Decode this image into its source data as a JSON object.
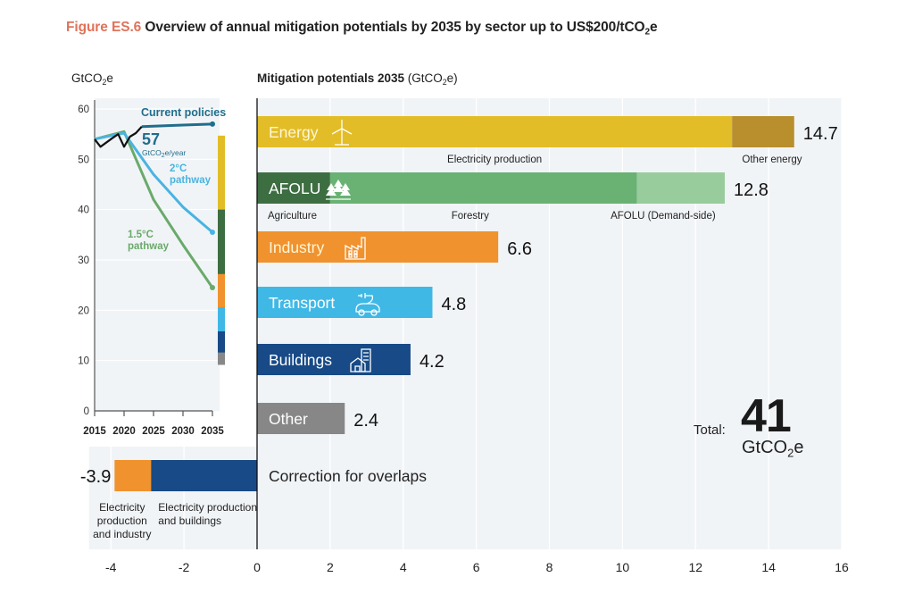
{
  "figure": {
    "number": "Figure ES.6",
    "title": "Overview of annual mitigation potentials by 2035 by sector up to US$200/tCO",
    "title_sub": "2",
    "title_tail": "e"
  },
  "chart_data": [
    {
      "type": "line",
      "id": "emissions-pathways",
      "ylabel": "GtCO2e",
      "ylabel_main": "GtCO",
      "ylabel_sub": "2",
      "ylabel_tail": "e",
      "ylim": [
        0,
        60
      ],
      "xlim": [
        2015,
        2035
      ],
      "y_ticks": [
        0,
        10,
        20,
        30,
        40,
        50,
        60
      ],
      "x_ticks": [
        2015,
        2020,
        2025,
        2030,
        2035
      ],
      "grid": true,
      "series": [
        {
          "name": "Historical",
          "color": "#111111",
          "points": [
            [
              2015,
              54.0
            ],
            [
              2016,
              52.5
            ],
            [
              2018,
              54.2
            ],
            [
              2019,
              55.0
            ],
            [
              2020,
              52.5
            ],
            [
              2021,
              54.5
            ],
            [
              2022,
              55.2
            ],
            [
              2023,
              56.5
            ]
          ]
        },
        {
          "name": "Current policies",
          "label": "Current policies",
          "color": "#1f6e8c",
          "points": [
            [
              2023,
              56.5
            ],
            [
              2025,
              56.6
            ],
            [
              2030,
              56.8
            ],
            [
              2035,
              57.0
            ]
          ]
        },
        {
          "name": "2°C pathway",
          "label_line1": "2°C",
          "label_line2": "pathway",
          "color": "#4ab4e0",
          "points": [
            [
              2015,
              54.0
            ],
            [
              2019,
              55.0
            ],
            [
              2020,
              55.2
            ],
            [
              2025,
              47.0
            ],
            [
              2030,
              40.5
            ],
            [
              2035,
              35.5
            ]
          ]
        },
        {
          "name": "1.5°C pathway",
          "label_line1": "1.5°C",
          "label_line2": "pathway",
          "color": "#6aaa6a",
          "points": [
            [
              2015,
              54.0
            ],
            [
              2020,
              55.5
            ],
            [
              2025,
              42.0
            ],
            [
              2030,
              33.0
            ],
            [
              2035,
              24.5
            ]
          ]
        }
      ],
      "annotation": {
        "value": "57",
        "unit_main": "GtCO",
        "unit_sub": "2",
        "unit_tail": "e/year"
      },
      "stacked_gap_bar": {
        "segments": [
          {
            "sector": "Energy",
            "value": 14.7,
            "color": "#e2bd28"
          },
          {
            "sector": "AFOLU",
            "value": 12.8,
            "color": "#3d6e42"
          },
          {
            "sector": "Industry",
            "value": 6.6,
            "color": "#f0922e"
          },
          {
            "sector": "Transport",
            "value": 4.8,
            "color": "#3fb8e6"
          },
          {
            "sector": "Buildings",
            "value": 4.2,
            "color": "#174a86"
          },
          {
            "sector": "Other",
            "value": 2.4,
            "color": "#888888"
          },
          {
            "sector": "Correction",
            "value": -3.9,
            "color": "none"
          }
        ],
        "top_value": 57
      }
    },
    {
      "type": "bar",
      "id": "mitigation-potentials",
      "title": "Mitigation potentials 2035",
      "title_unit_main": " (GtCO",
      "title_unit_sub": "2",
      "title_unit_tail": "e)",
      "orientation": "horizontal",
      "xlim": [
        -4,
        16
      ],
      "x_ticks": [
        -4,
        -2,
        0,
        2,
        4,
        6,
        8,
        10,
        12,
        14,
        16
      ],
      "grid": true,
      "bars": [
        {
          "name": "Energy",
          "icon": "wind-turbine-icon",
          "total": 14.7,
          "total_label": "14.7",
          "segments": [
            {
              "label": "Electricity production",
              "value": 13.0,
              "color": "#e2bd28"
            },
            {
              "label": "Other energy",
              "value": 1.7,
              "color": "#b98f2e"
            }
          ]
        },
        {
          "name": "AFOLU",
          "icon": "trees-icon",
          "total": 12.8,
          "total_label": "12.8",
          "segments": [
            {
              "label": "Agriculture",
              "value": 2.0,
              "color": "#3d6e42"
            },
            {
              "label": "Forestry",
              "value": 8.4,
              "color": "#69b273"
            },
            {
              "label": "AFOLU (Demand-side)",
              "value": 2.4,
              "color": "#99cc9c"
            }
          ]
        },
        {
          "name": "Industry",
          "icon": "factory-icon",
          "total": 6.6,
          "total_label": "6.6",
          "segments": [
            {
              "label": "",
              "value": 6.6,
              "color": "#f0922e"
            }
          ]
        },
        {
          "name": "Transport",
          "icon": "electric-car-icon",
          "total": 4.8,
          "total_label": "4.8",
          "segments": [
            {
              "label": "",
              "value": 4.8,
              "color": "#3fb8e6"
            }
          ]
        },
        {
          "name": "Buildings",
          "icon": "building-house-icon",
          "total": 4.2,
          "total_label": "4.2",
          "segments": [
            {
              "label": "",
              "value": 4.2,
              "color": "#174a86"
            }
          ]
        },
        {
          "name": "Other",
          "icon": "",
          "total": 2.4,
          "total_label": "2.4",
          "segments": [
            {
              "label": "",
              "value": 2.4,
              "color": "#878787"
            }
          ]
        }
      ],
      "correction": {
        "name": "Correction for overlaps",
        "total": -3.9,
        "total_label": "-3.9",
        "segments": [
          {
            "label_lines": [
              "Electricity",
              "production",
              "and industry"
            ],
            "from": -3.9,
            "to": -2.9,
            "color": "#f0922e"
          },
          {
            "label_lines": [
              "Electricity production",
              "and buildings"
            ],
            "from": -2.9,
            "to": 0,
            "color": "#174a86"
          }
        ]
      },
      "total": {
        "label": "Total:",
        "value": "41",
        "unit_main": "GtCO",
        "unit_sub": "2",
        "unit_tail": "e"
      }
    }
  ]
}
